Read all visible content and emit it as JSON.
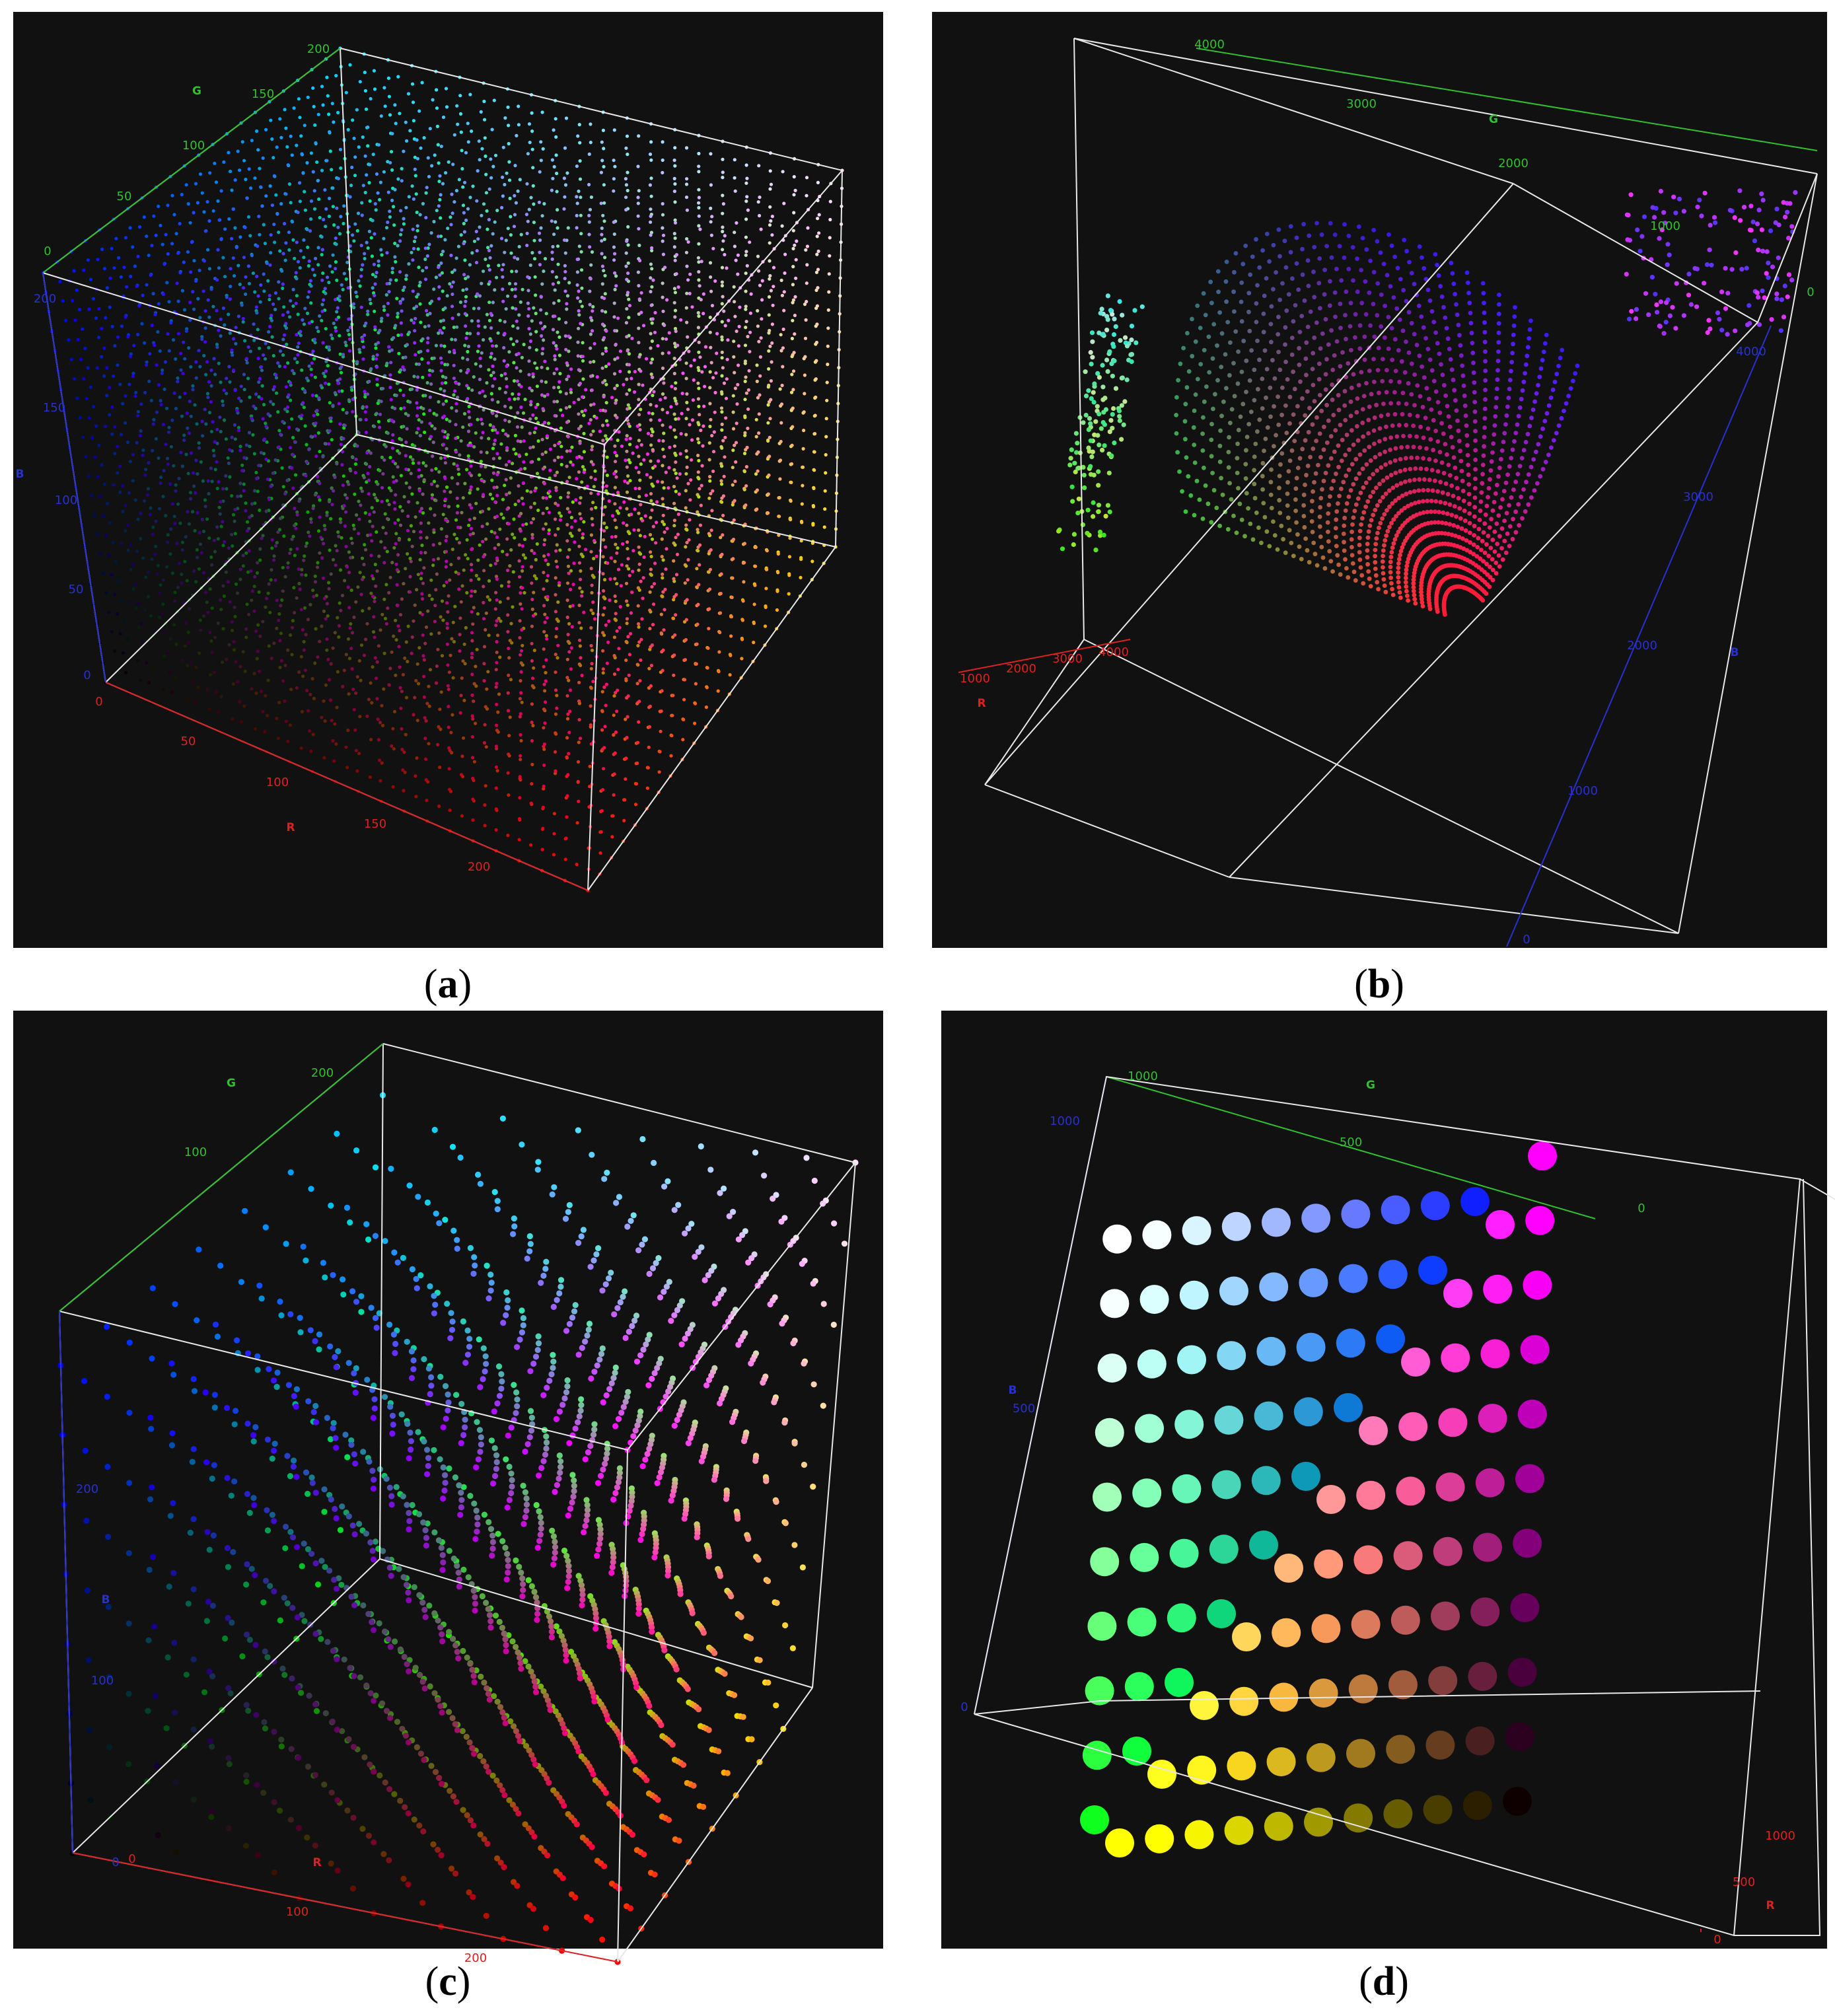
{
  "colors": {
    "background": "#111111",
    "frame": "#e8e8e8",
    "r_axis": "#e02020",
    "g_axis": "#30c030",
    "b_axis": "#2830d0"
  },
  "chart_data": [
    {
      "id": "a",
      "type": "scatter",
      "caption_letter": "a",
      "description_axes": [
        "R",
        "G",
        "B"
      ],
      "axes": {
        "R": {
          "label": "R",
          "ticks": [
            "0",
            "50",
            "100",
            "150",
            "200"
          ]
        },
        "G": {
          "label": "G",
          "ticks": [
            "0",
            "50",
            "100",
            "150",
            "200"
          ]
        },
        "B": {
          "label": "B",
          "ticks": [
            "0",
            "50",
            "100",
            "150",
            "200"
          ]
        }
      },
      "grid": false,
      "distribution": "regular lattice filling the full RGB cube"
    },
    {
      "id": "b",
      "type": "scatter",
      "caption_letter": "b",
      "description_axes": [
        "R",
        "G",
        "B"
      ],
      "axes": {
        "R": {
          "label": "R",
          "ticks": [
            "1000",
            "2000",
            "3000",
            "4000"
          ]
        },
        "G": {
          "label": "G",
          "ticks": [
            "4000",
            "3000",
            "2000",
            "1000",
            "0"
          ]
        },
        "B": {
          "label": "B",
          "ticks": [
            "0",
            "1000",
            "2000",
            "3000",
            "4000"
          ]
        }
      },
      "grid": false,
      "distribution": "curved fan of strands spreading from the red corner"
    },
    {
      "id": "c",
      "type": "scatter",
      "caption_letter": "c",
      "description_axes": [
        "R",
        "G",
        "B"
      ],
      "axes": {
        "R": {
          "label": "R",
          "ticks": [
            "0",
            "100",
            "200"
          ]
        },
        "G": {
          "label": "G",
          "ticks": [
            "100",
            "200"
          ]
        },
        "B": {
          "label": "B",
          "ticks": [
            "0",
            "100",
            "200"
          ]
        }
      },
      "grid": false,
      "distribution": "curved sheets of larger points"
    },
    {
      "id": "d",
      "type": "scatter",
      "caption_letter": "d",
      "description_axes": [
        "R",
        "G",
        "B"
      ],
      "axes": {
        "R": {
          "label": "R",
          "ticks": [
            "0",
            "500",
            "1000"
          ]
        },
        "G": {
          "label": "G",
          "ticks": [
            "1000",
            "500",
            "0"
          ]
        },
        "B": {
          "label": "B",
          "ticks": [
            "0",
            "500",
            "1000"
          ]
        }
      },
      "grid": false,
      "distribution": "large spheres on a coarse lattice"
    }
  ]
}
